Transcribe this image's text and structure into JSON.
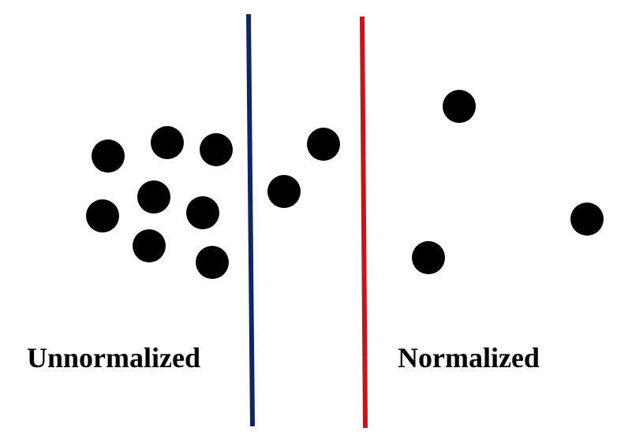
{
  "labels": {
    "unnormalized": "Unnormalized",
    "normalized": "Normalized"
  },
  "colors": {
    "dot": "#000000",
    "unnormalized_boundary": "#0d2766",
    "normalized_boundary": "#c81418"
  }
}
